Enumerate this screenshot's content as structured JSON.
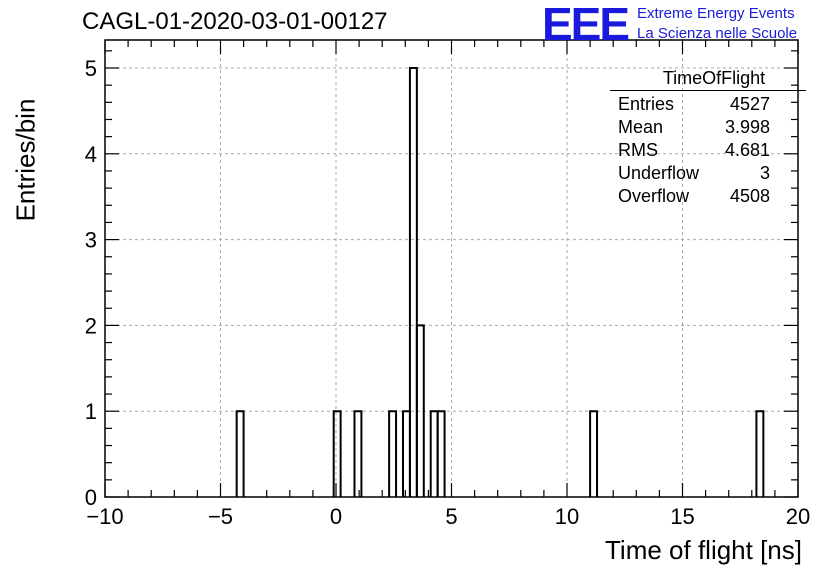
{
  "header": {
    "title": "CAGL-01-2020-03-01-00127",
    "logo_text": "EEE",
    "logo_line1": "Extreme Energy Events",
    "logo_line2": "La Scienza nelle Scuole"
  },
  "stats_box": {
    "title": "TimeOfFlight",
    "rows": [
      {
        "label": "Entries",
        "value": "4527"
      },
      {
        "label": "Mean",
        "value": "3.998"
      },
      {
        "label": "RMS",
        "value": "4.681"
      },
      {
        "label": "Underflow",
        "value": "3"
      },
      {
        "label": "Overflow",
        "value": "4508"
      }
    ]
  },
  "chart_data": {
    "type": "bar",
    "histogram_style": "step",
    "title": "CAGL-01-2020-03-01-00127",
    "xlabel": "Time of flight [ns]",
    "ylabel": "Entries/bin",
    "xlim": [
      -10,
      20
    ],
    "ylim": [
      0,
      5.2
    ],
    "xticks": [
      -10,
      -5,
      0,
      5,
      10,
      15,
      20
    ],
    "xtick_labels": [
      "−10",
      "−5",
      "0",
      "5",
      "10",
      "15",
      "20"
    ],
    "yticks": [
      0,
      1,
      2,
      3,
      4,
      5
    ],
    "grid": true,
    "bin_width": 0.3,
    "bins": [
      {
        "x_low": -4.3,
        "x_high": -4.0,
        "count": 1
      },
      {
        "x_low": -0.1,
        "x_high": 0.2,
        "count": 1
      },
      {
        "x_low": 0.8,
        "x_high": 1.1,
        "count": 1
      },
      {
        "x_low": 2.3,
        "x_high": 2.6,
        "count": 1
      },
      {
        "x_low": 2.9,
        "x_high": 3.2,
        "count": 1
      },
      {
        "x_low": 3.2,
        "x_high": 3.5,
        "count": 5
      },
      {
        "x_low": 3.5,
        "x_high": 3.8,
        "count": 2
      },
      {
        "x_low": 4.1,
        "x_high": 4.4,
        "count": 1
      },
      {
        "x_low": 4.4,
        "x_high": 4.7,
        "count": 1
      },
      {
        "x_low": 11.0,
        "x_high": 11.3,
        "count": 1
      },
      {
        "x_low": 18.2,
        "x_high": 18.5,
        "count": 1
      }
    ]
  }
}
